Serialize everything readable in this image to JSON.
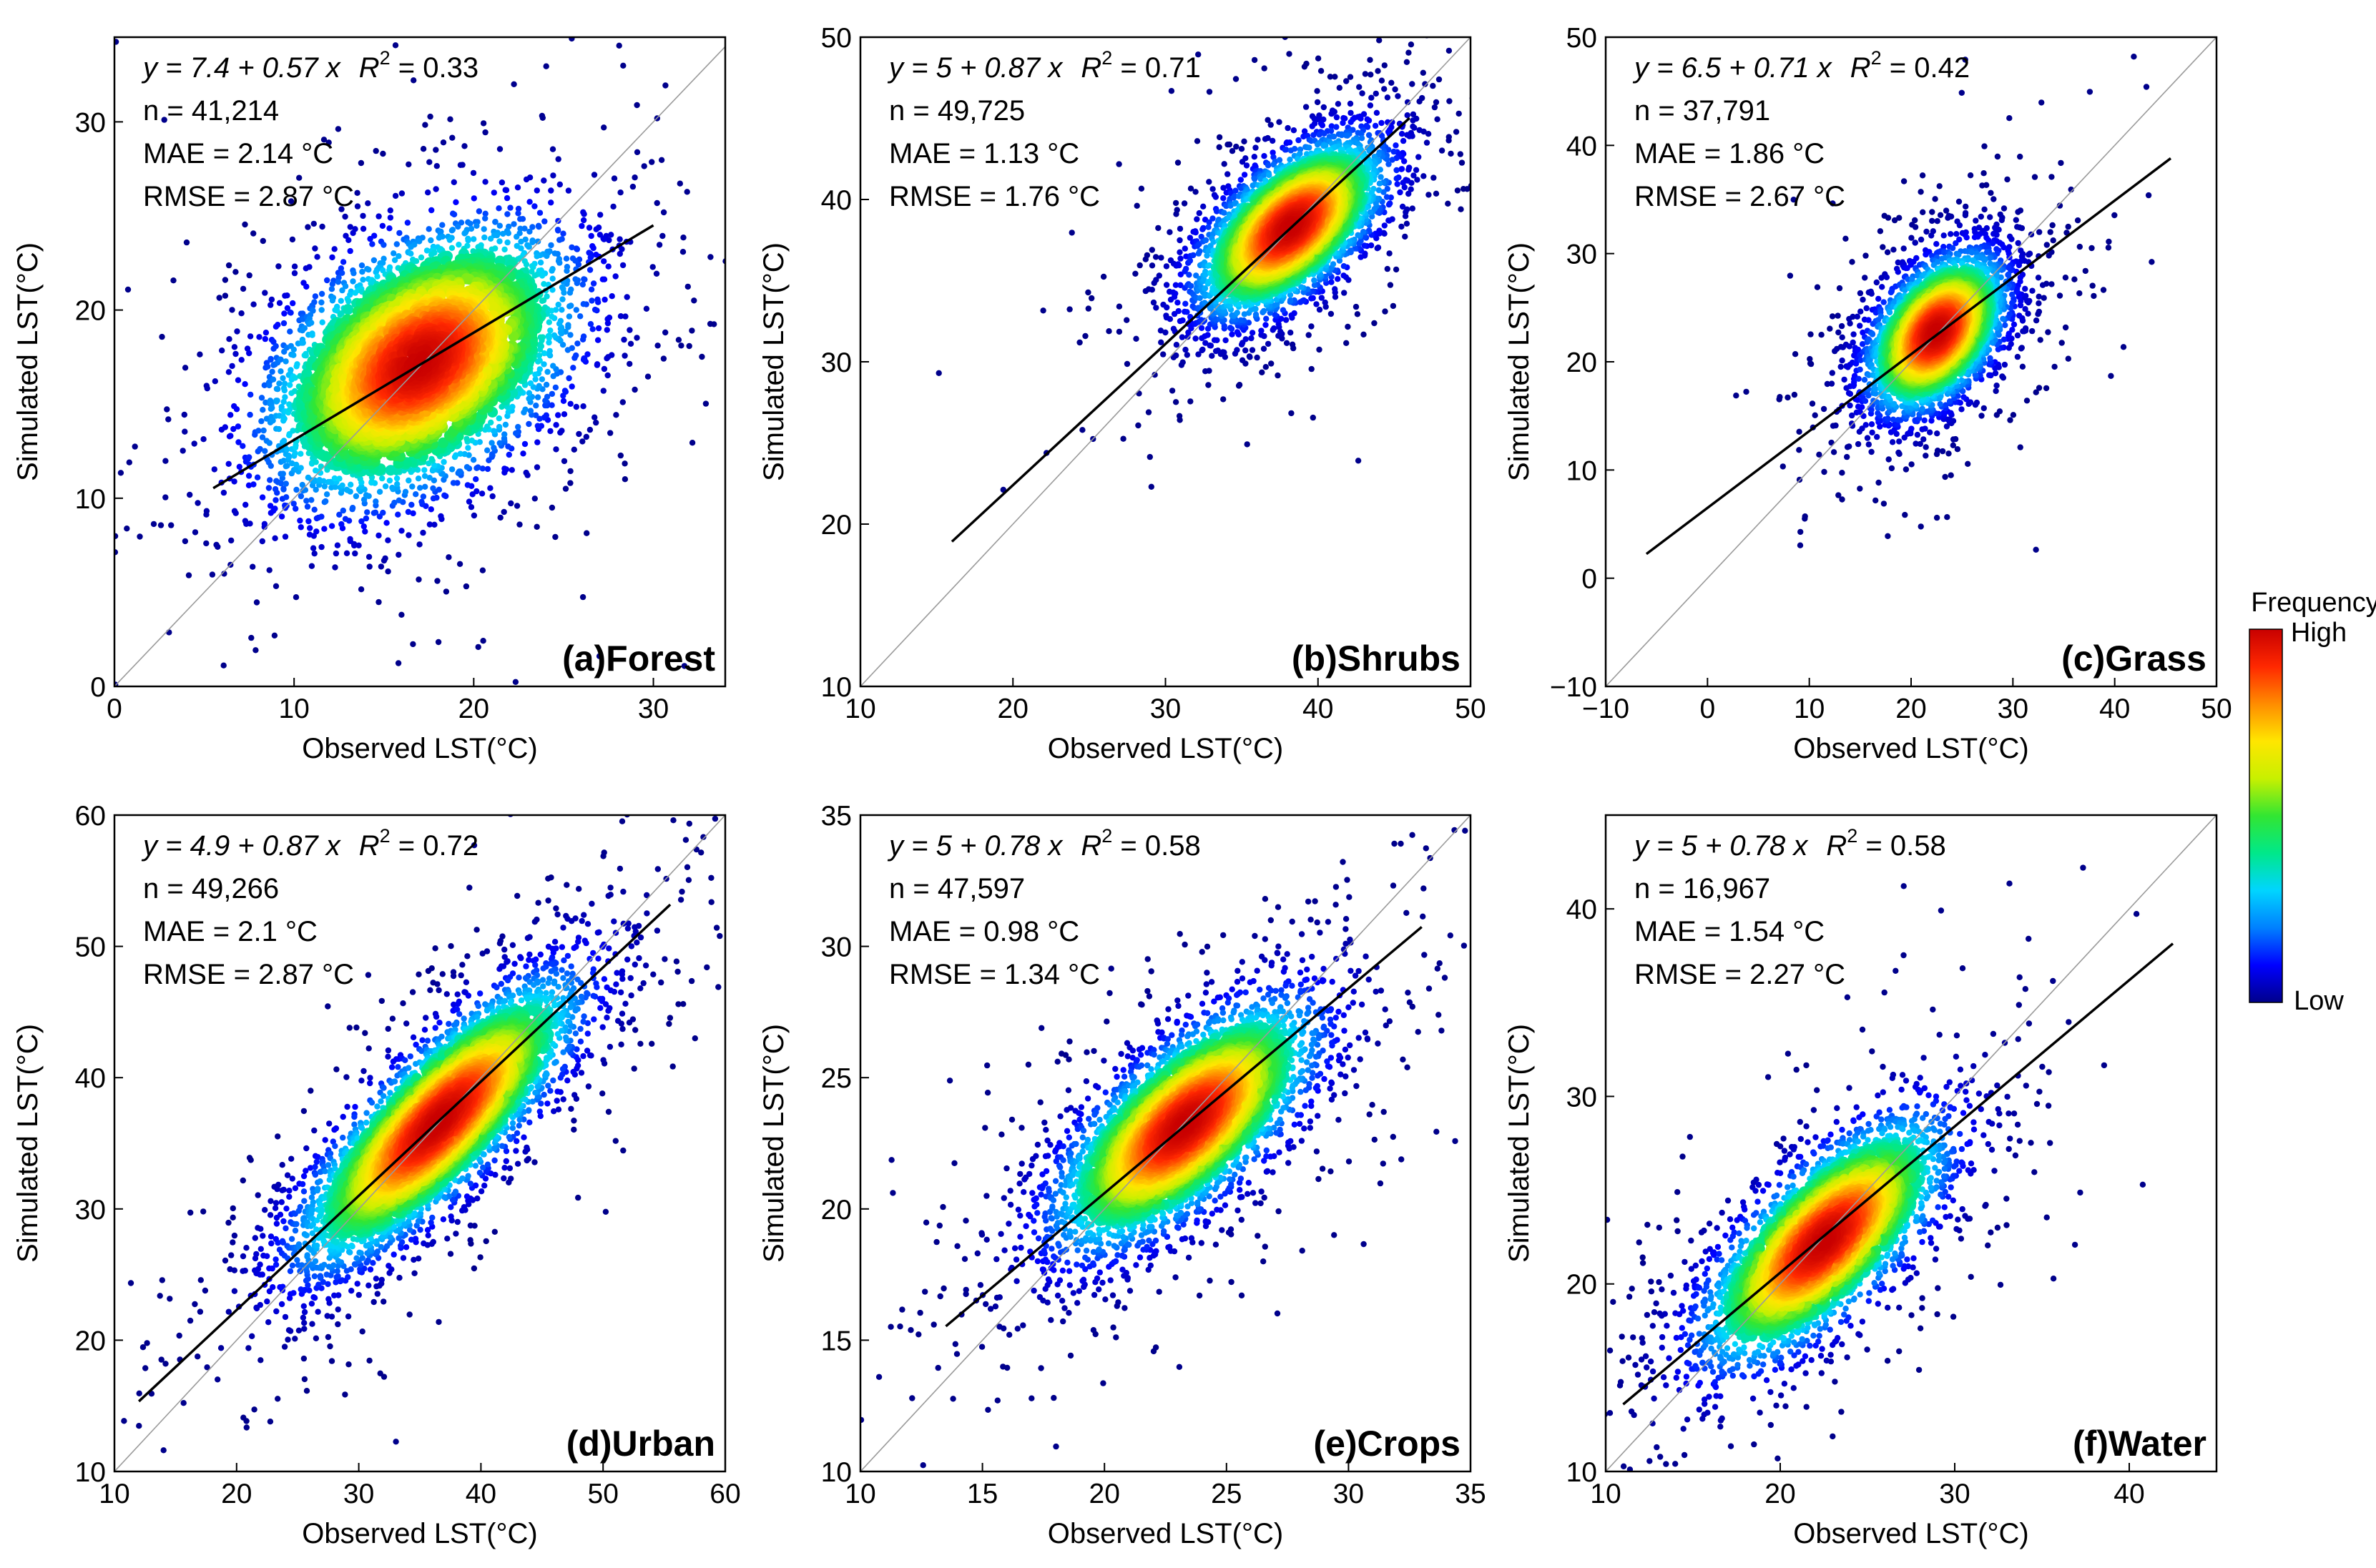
{
  "colors": {
    "point_low": "#00008b",
    "fit_line": "#000000",
    "identity_line": "#9a9a9a",
    "colormap": [
      "#00008b",
      "#0000ff",
      "#0080ff",
      "#00d5ff",
      "#00e88a",
      "#32e632",
      "#c8f000",
      "#ffe600",
      "#ff8c00",
      "#ff2800",
      "#c80000"
    ]
  },
  "colorbar": {
    "title": "Frequency",
    "high_label": "High",
    "low_label": "Low"
  },
  "chart_data": [
    {
      "type": "scatter",
      "panel_label": "(a)Forest",
      "xlabel": "Observed LST(°C)",
      "ylabel": "Simulated LST(°C)",
      "xlim": [
        0,
        34
      ],
      "ylim": [
        0,
        34.5
      ],
      "xticks": [
        0,
        10,
        20,
        30
      ],
      "yticks": [
        0,
        10,
        20,
        30
      ],
      "fit": {
        "intercept": 7.4,
        "slope": 0.57,
        "x_range": [
          5.5,
          30
        ]
      },
      "stats": {
        "equation": "y = 7.4 + 0.57 x",
        "r2_prefix": "R",
        "r2_sup": "2",
        "r2_value": " = 0.33",
        "n": "n = 41,214",
        "mae": "MAE = 2.14 °C",
        "rmse": "RMSE = 2.87 °C"
      },
      "density": {
        "center": [
          17,
          17.2
        ],
        "sx": 4.2,
        "sy": 3.6,
        "rho": 0.42,
        "count": 4200,
        "seed": 11
      }
    },
    {
      "type": "scatter",
      "panel_label": "(b)Shrubs",
      "xlabel": "Observed LST(°C)",
      "ylabel": "Simulated LST(°C)",
      "xlim": [
        10,
        50
      ],
      "ylim": [
        10,
        50
      ],
      "xticks": [
        10,
        20,
        30,
        40,
        50
      ],
      "yticks": [
        10,
        20,
        30,
        40,
        50
      ],
      "fit": {
        "intercept": 5,
        "slope": 0.87,
        "x_range": [
          16,
          46
        ]
      },
      "stats": {
        "equation": "y = 5 + 0.87 x",
        "r2_prefix": "R",
        "r2_sup": "2",
        "r2_value": " = 0.71",
        "n": "n = 49,725",
        "mae": "MAE = 1.13 °C",
        "rmse": "RMSE = 1.76 °C"
      },
      "density": {
        "center": [
          38.2,
          38.3
        ],
        "sx": 3.0,
        "sy": 2.7,
        "rho": 0.6,
        "count": 4200,
        "seed": 23
      }
    },
    {
      "type": "scatter",
      "panel_label": "(c)Grass",
      "xlabel": "Observed LST(°C)",
      "ylabel": "Simulated LST(°C)",
      "xlim": [
        -10,
        50
      ],
      "ylim": [
        -10,
        50
      ],
      "xticks": [
        -10,
        0,
        10,
        20,
        30,
        40,
        50
      ],
      "yticks": [
        -10,
        0,
        10,
        20,
        30,
        40,
        50
      ],
      "fit": {
        "intercept": 6.5,
        "slope": 0.71,
        "x_range": [
          -6,
          45.5
        ]
      },
      "stats": {
        "equation": "y = 6.5 + 0.71 x",
        "r2_prefix": "R",
        "r2_sup": "2",
        "r2_value": " = 0.42",
        "n": "n = 37,791",
        "mae": "MAE = 1.86 °C",
        "rmse": "RMSE = 2.67 °C"
      },
      "density": {
        "center": [
          22.5,
          22.7
        ],
        "sx": 3.3,
        "sy": 3.6,
        "rho": 0.45,
        "count": 3800,
        "seed": 37
      }
    },
    {
      "type": "scatter",
      "panel_label": "(d)Urban",
      "xlabel": "Observed LST(°C)",
      "ylabel": "Simulated LST(°C)",
      "xlim": [
        10,
        60
      ],
      "ylim": [
        10,
        60
      ],
      "xticks": [
        10,
        20,
        30,
        40,
        50,
        60
      ],
      "yticks": [
        10,
        20,
        30,
        40,
        50,
        60
      ],
      "fit": {
        "intercept": 4.9,
        "slope": 0.87,
        "x_range": [
          12,
          55.5
        ]
      },
      "stats": {
        "equation": "y = 4.9 + 0.87 x",
        "r2_prefix": "R",
        "r2_sup": "2",
        "r2_value": " = 0.72",
        "n": "n = 49,266",
        "mae": "MAE = 2.1 °C",
        "rmse": "RMSE = 2.87 °C"
      },
      "density": {
        "center": [
          36.5,
          36.6
        ],
        "sx": 5.6,
        "sy": 5.4,
        "rho": 0.82,
        "count": 4600,
        "seed": 41
      }
    },
    {
      "type": "scatter",
      "panel_label": "(e)Crops",
      "xlabel": "Observed LST(°C)",
      "ylabel": "Simulated LST(°C)",
      "xlim": [
        10,
        35
      ],
      "ylim": [
        10,
        35
      ],
      "xticks": [
        10,
        15,
        20,
        25,
        30,
        35
      ],
      "yticks": [
        10,
        15,
        20,
        25,
        30,
        35
      ],
      "fit": {
        "intercept": 5,
        "slope": 0.78,
        "x_range": [
          13.5,
          33
        ]
      },
      "stats": {
        "equation": "y = 5 + 0.78 x",
        "r2_prefix": "R",
        "r2_sup": "2",
        "r2_value": " = 0.58",
        "n": "n = 47,597",
        "mae": "MAE = 0.98 °C",
        "rmse": "RMSE = 1.34 °C"
      },
      "density": {
        "center": [
          23.3,
          23.2
        ],
        "sx": 2.6,
        "sy": 2.3,
        "rho": 0.7,
        "count": 4400,
        "seed": 53
      }
    },
    {
      "type": "scatter",
      "panel_label": "(f)Water",
      "xlabel": "Observed LST(°C)",
      "ylabel": "Simulated LST(°C)",
      "xlim": [
        10,
        45
      ],
      "ylim": [
        10,
        45
      ],
      "xticks": [
        10,
        20,
        30,
        40
      ],
      "yticks": [
        10,
        20,
        30,
        40
      ],
      "fit": {
        "intercept": 5,
        "slope": 0.78,
        "x_range": [
          11,
          42.5
        ]
      },
      "stats": {
        "equation": "y = 5 + 0.78 x",
        "r2_prefix": "R",
        "r2_sup": "2",
        "r2_value": " = 0.58",
        "n": "n = 16,967",
        "mae": "MAE = 1.54 °C",
        "rmse": "RMSE = 2.27 °C"
      },
      "density": {
        "center": [
          22.5,
          22.3
        ],
        "sx": 3.4,
        "sy": 3.2,
        "rho": 0.72,
        "count": 3400,
        "seed": 67
      }
    }
  ]
}
